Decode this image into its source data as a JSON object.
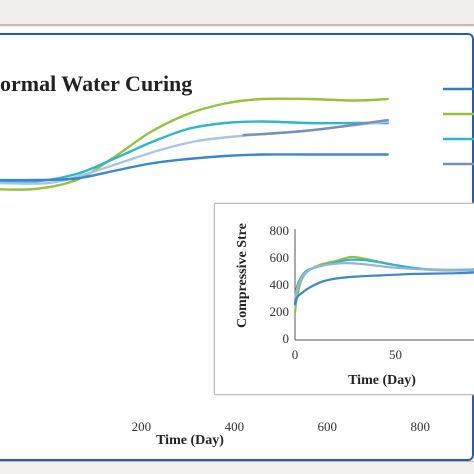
{
  "chart_data": [
    {
      "type": "line",
      "title": "ormal Water Curing",
      "xlabel": "Time (Day)",
      "ylabel": "",
      "xlim": [
        -130,
        920
      ],
      "ylim": [
        0,
        100
      ],
      "x_ticks": [
        200,
        400,
        600,
        800
      ],
      "series": [
        {
          "color": "#95c23d",
          "points": [
            [
              -130,
              26
            ],
            [
              -30,
              26
            ],
            [
              60,
              32
            ],
            [
              140,
              47
            ],
            [
              220,
              64
            ],
            [
              300,
              76
            ],
            [
              380,
              83
            ],
            [
              460,
              86
            ],
            [
              560,
              86
            ],
            [
              660,
              85
            ],
            [
              730,
              86
            ]
          ]
        },
        {
          "color": "#2fb6c8",
          "points": [
            [
              -130,
              31
            ],
            [
              -30,
              31
            ],
            [
              60,
              36
            ],
            [
              140,
              46
            ],
            [
              220,
              57
            ],
            [
              300,
              66
            ],
            [
              380,
              70
            ],
            [
              460,
              71
            ],
            [
              560,
              70
            ],
            [
              660,
              70
            ],
            [
              730,
              70
            ]
          ]
        },
        {
          "color": "#a9c4e6",
          "points": [
            [
              -130,
              30
            ],
            [
              0,
              30
            ],
            [
              80,
              36
            ],
            [
              160,
              44
            ],
            [
              240,
              52
            ],
            [
              320,
              58
            ],
            [
              400,
              61
            ],
            [
              480,
              63
            ],
            [
              560,
              65
            ],
            [
              640,
              68
            ],
            [
              730,
              71
            ]
          ]
        },
        {
          "color": "#7a8fb8",
          "points": [
            [
              420,
              62
            ],
            [
              480,
              63
            ],
            [
              560,
              65
            ],
            [
              640,
              68
            ],
            [
              730,
              72
            ]
          ]
        },
        {
          "color": "#3b86cc",
          "points": [
            [
              -130,
              32
            ],
            [
              -30,
              32
            ],
            [
              60,
              33
            ],
            [
              140,
              38
            ],
            [
              220,
              43
            ],
            [
              300,
              46
            ],
            [
              380,
              48
            ],
            [
              460,
              49
            ],
            [
              560,
              49
            ],
            [
              660,
              49
            ],
            [
              730,
              49
            ]
          ]
        }
      ],
      "legend_colors": [
        "#2f7fc1",
        "#95c23d",
        "#2fb6c8",
        "#7a8fb8"
      ]
    },
    {
      "type": "line",
      "title": "",
      "xlabel": "Time (Day)",
      "ylabel": "Compressive Stre",
      "xlim": [
        0,
        95
      ],
      "ylim": [
        0,
        800
      ],
      "x_ticks": [
        0,
        50
      ],
      "y_ticks": [
        0,
        200,
        400,
        600,
        800
      ],
      "series": [
        {
          "color": "#95c23d",
          "points": [
            [
              0,
              190
            ],
            [
              1,
              300
            ],
            [
              3,
              420
            ],
            [
              6,
              490
            ],
            [
              12,
              540
            ],
            [
              20,
              570
            ],
            [
              28,
              600
            ],
            [
              34,
              590
            ],
            [
              45,
              555
            ],
            [
              60,
              515
            ],
            [
              75,
              500
            ],
            [
              95,
              505
            ]
          ]
        },
        {
          "color": "#2fb6c8",
          "points": [
            [
              0,
              270
            ],
            [
              1,
              380
            ],
            [
              3,
              450
            ],
            [
              6,
              500
            ],
            [
              12,
              530
            ],
            [
              20,
              560
            ],
            [
              28,
              580
            ],
            [
              36,
              575
            ],
            [
              50,
              540
            ],
            [
              65,
              510
            ],
            [
              80,
              505
            ],
            [
              95,
              510
            ]
          ]
        },
        {
          "color": "#9ab0dd",
          "points": [
            [
              0,
              260
            ],
            [
              1,
              360
            ],
            [
              4,
              460
            ],
            [
              8,
              510
            ],
            [
              15,
              540
            ],
            [
              25,
              555
            ],
            [
              35,
              545
            ],
            [
              50,
              520
            ],
            [
              70,
              505
            ],
            [
              95,
              500
            ]
          ]
        },
        {
          "color": "#3b86cc",
          "points": [
            [
              0,
              250
            ],
            [
              1,
              300
            ],
            [
              4,
              340
            ],
            [
              8,
              380
            ],
            [
              14,
              420
            ],
            [
              20,
              440
            ],
            [
              30,
              455
            ],
            [
              45,
              465
            ],
            [
              60,
              475
            ],
            [
              80,
              480
            ],
            [
              95,
              490
            ]
          ]
        }
      ]
    }
  ]
}
